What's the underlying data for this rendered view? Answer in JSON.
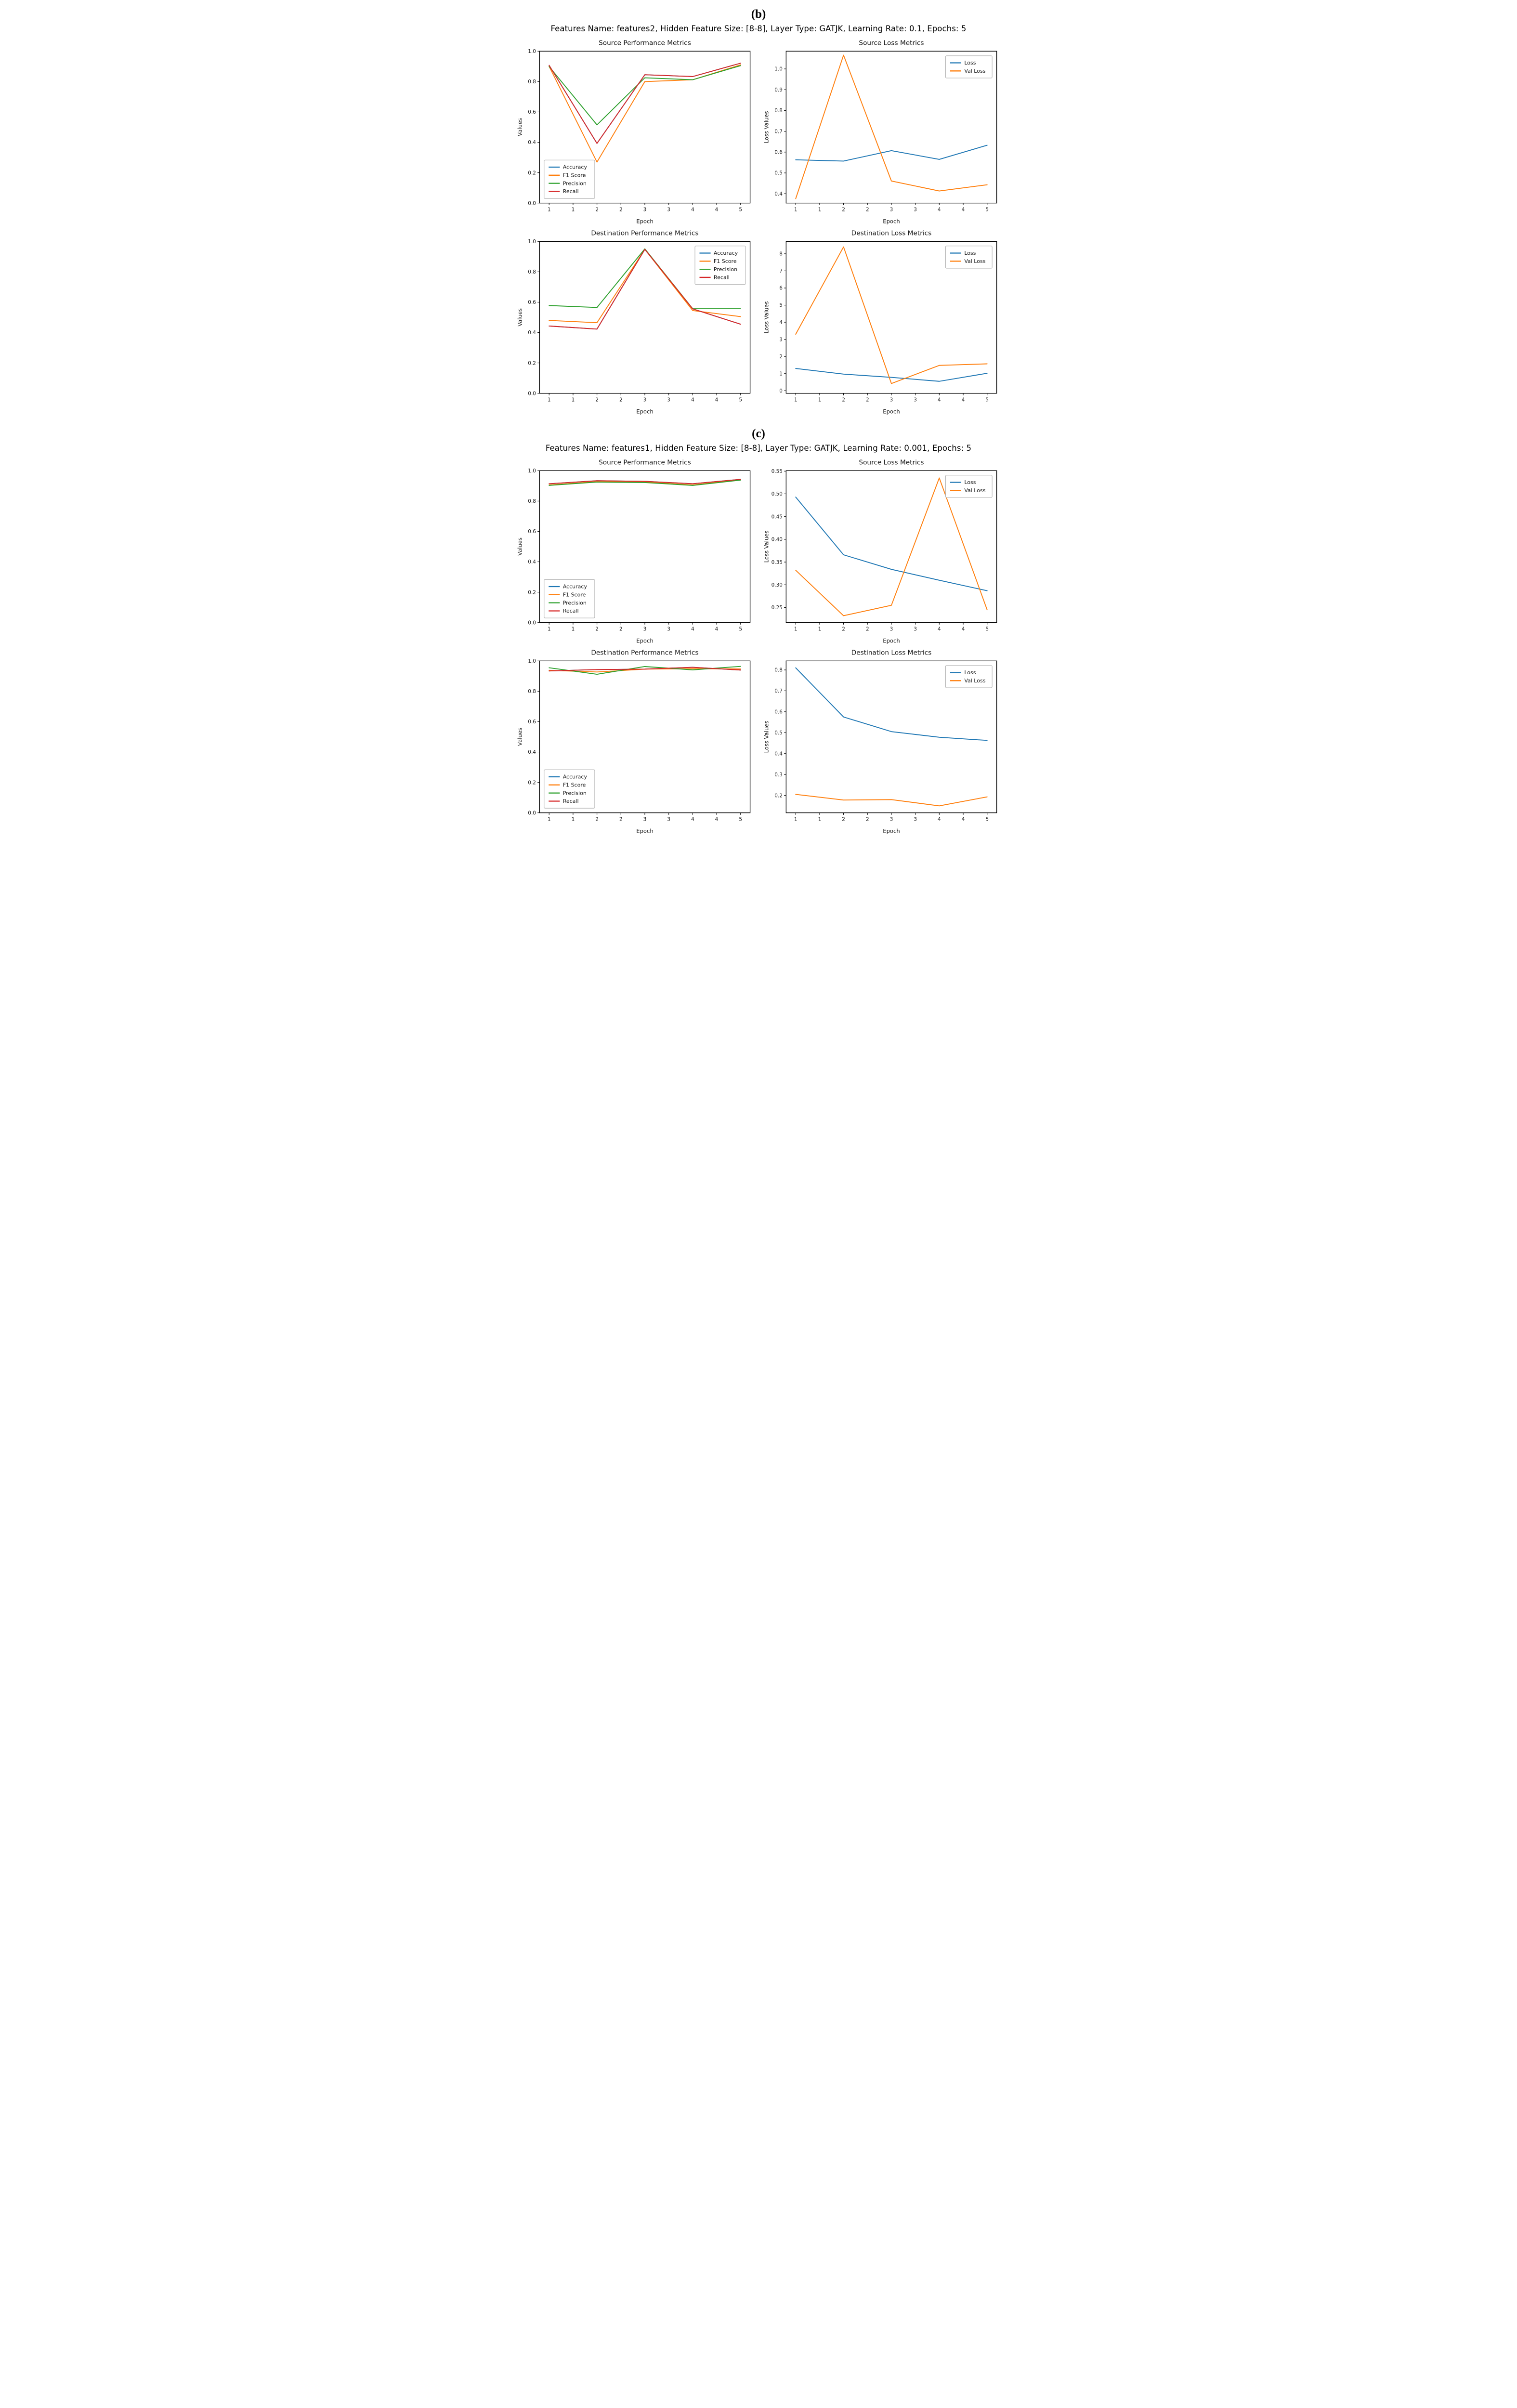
{
  "sections": {
    "b": {
      "label": "(b)",
      "caption": "Features Name: features2, Hidden Feature Size: [8-8], Layer Type: GATJK, Learning Rate: 0.1, Epochs: 5"
    },
    "c": {
      "label": "(c)",
      "caption": "Features Name: features1, Hidden Feature Size: [8-8], Layer Type: GATJK, Learning Rate: 0.001, Epochs: 5"
    }
  },
  "colors": {
    "accuracy": "#1f77b4",
    "f1_score": "#ff7f0e",
    "precision": "#2ca02c",
    "recall": "#d62728",
    "loss": "#1f77b4",
    "val_loss": "#ff7f0e",
    "axis": "#000000",
    "legend_border": "#b0b0b0"
  },
  "chart_data": [
    {
      "id": "b-source-performance",
      "type": "line",
      "title": "Source Performance Metrics",
      "xlabel": "Epoch",
      "ylabel": "Values",
      "x": [
        1,
        2,
        3,
        4,
        5
      ],
      "xlim": [
        0.8,
        5.2
      ],
      "xticks": [
        1,
        1.5,
        2,
        2.5,
        3,
        3.5,
        4,
        4.5,
        5
      ],
      "xtick_labels": [
        "1",
        "1",
        "2",
        "2",
        "3",
        "3",
        "4",
        "4",
        "5"
      ],
      "ylim": [
        0.0,
        1.0
      ],
      "yticks": [
        0.0,
        0.2,
        0.4,
        0.6,
        0.8,
        1.0
      ],
      "ytick_labels": [
        "0.0",
        "0.2",
        "0.4",
        "0.6",
        "0.8",
        "1.0"
      ],
      "grid": false,
      "legend_position": "lower-left",
      "series": [
        {
          "name": "Accuracy",
          "color": "#1f77b4",
          "values": [
            0.907,
            0.393,
            0.845,
            0.833,
            0.921
          ]
        },
        {
          "name": "F1 Score",
          "color": "#ff7f0e",
          "values": [
            0.9,
            0.27,
            0.8,
            0.812,
            0.91
          ]
        },
        {
          "name": "Precision",
          "color": "#2ca02c",
          "values": [
            0.899,
            0.515,
            0.825,
            0.812,
            0.905
          ]
        },
        {
          "name": "Recall",
          "color": "#d62728",
          "values": [
            0.907,
            0.393,
            0.845,
            0.833,
            0.921
          ]
        }
      ]
    },
    {
      "id": "b-source-loss",
      "type": "line",
      "title": "Source Loss Metrics",
      "xlabel": "Epoch",
      "ylabel": "Loss Values",
      "x": [
        1,
        2,
        3,
        4,
        5
      ],
      "xlim": [
        0.8,
        5.2
      ],
      "xticks": [
        1,
        1.5,
        2,
        2.5,
        3,
        3.5,
        4,
        4.5,
        5
      ],
      "xtick_labels": [
        "1",
        "1",
        "2",
        "2",
        "3",
        "3",
        "4",
        "4",
        "5"
      ],
      "ylim": [
        0.355,
        1.085
      ],
      "yticks": [
        0.4,
        0.5,
        0.6,
        0.7,
        0.8,
        0.9,
        1.0
      ],
      "ytick_labels": [
        "0.4",
        "0.5",
        "0.6",
        "0.7",
        "0.8",
        "0.9",
        "1.0"
      ],
      "grid": false,
      "legend_position": "upper-right",
      "series": [
        {
          "name": "Loss",
          "color": "#1f77b4",
          "values": [
            0.563,
            0.557,
            0.607,
            0.565,
            0.633
          ]
        },
        {
          "name": "Val Loss",
          "color": "#ff7f0e",
          "values": [
            0.376,
            1.066,
            0.461,
            0.413,
            0.443
          ]
        }
      ]
    },
    {
      "id": "b-destination-performance",
      "type": "line",
      "title": "Destination Performance Metrics",
      "xlabel": "Epoch",
      "ylabel": "Values",
      "x": [
        1,
        2,
        3,
        4,
        5
      ],
      "xlim": [
        0.8,
        5.2
      ],
      "xticks": [
        1,
        1.5,
        2,
        2.5,
        3,
        3.5,
        4,
        4.5,
        5
      ],
      "xtick_labels": [
        "1",
        "1",
        "2",
        "2",
        "3",
        "3",
        "4",
        "4",
        "5"
      ],
      "ylim": [
        0.0,
        1.0
      ],
      "yticks": [
        0.0,
        0.2,
        0.4,
        0.6,
        0.8,
        1.0
      ],
      "ytick_labels": [
        "0.0",
        "0.2",
        "0.4",
        "0.6",
        "0.8",
        "1.0"
      ],
      "grid": false,
      "legend_position": "upper-right",
      "series": [
        {
          "name": "Accuracy",
          "color": "#1f77b4",
          "values": [
            0.443,
            0.423,
            0.948,
            0.556,
            0.455
          ]
        },
        {
          "name": "F1 Score",
          "color": "#ff7f0e",
          "values": [
            0.48,
            0.465,
            0.948,
            0.545,
            0.505
          ]
        },
        {
          "name": "Precision",
          "color": "#2ca02c",
          "values": [
            0.578,
            0.565,
            0.951,
            0.557,
            0.557
          ]
        },
        {
          "name": "Recall",
          "color": "#d62728",
          "values": [
            0.443,
            0.423,
            0.948,
            0.556,
            0.455
          ]
        }
      ]
    },
    {
      "id": "b-destination-loss",
      "type": "line",
      "title": "Destination Loss Metrics",
      "xlabel": "Epoch",
      "ylabel": "Loss Values",
      "x": [
        1,
        2,
        3,
        4,
        5
      ],
      "xlim": [
        0.8,
        5.2
      ],
      "xticks": [
        1,
        1.5,
        2,
        2.5,
        3,
        3.5,
        4,
        4.5,
        5
      ],
      "xtick_labels": [
        "1",
        "1",
        "2",
        "2",
        "3",
        "3",
        "4",
        "4",
        "5"
      ],
      "ylim": [
        -0.15,
        8.72
      ],
      "yticks": [
        0,
        1,
        2,
        3,
        4,
        5,
        6,
        7,
        8
      ],
      "ytick_labels": [
        "0",
        "1",
        "2",
        "3",
        "4",
        "5",
        "6",
        "7",
        "8"
      ],
      "grid": false,
      "legend_position": "upper-right",
      "series": [
        {
          "name": "Loss",
          "color": "#1f77b4",
          "values": [
            1.3,
            0.97,
            0.78,
            0.55,
            1.02
          ]
        },
        {
          "name": "Val Loss",
          "color": "#ff7f0e",
          "values": [
            3.3,
            8.4,
            0.42,
            1.48,
            1.57
          ]
        }
      ]
    },
    {
      "id": "c-source-performance",
      "type": "line",
      "title": "Source Performance Metrics",
      "xlabel": "Epoch",
      "ylabel": "Values",
      "x": [
        1,
        2,
        3,
        4,
        5
      ],
      "xlim": [
        0.8,
        5.2
      ],
      "xticks": [
        1,
        1.5,
        2,
        2.5,
        3,
        3.5,
        4,
        4.5,
        5
      ],
      "xtick_labels": [
        "1",
        "1",
        "2",
        "2",
        "3",
        "3",
        "4",
        "4",
        "5"
      ],
      "ylim": [
        0.0,
        1.0
      ],
      "yticks": [
        0.0,
        0.2,
        0.4,
        0.6,
        0.8,
        1.0
      ],
      "ytick_labels": [
        "0.0",
        "0.2",
        "0.4",
        "0.6",
        "0.8",
        "1.0"
      ],
      "grid": false,
      "legend_position": "lower-left",
      "series": [
        {
          "name": "Accuracy",
          "color": "#1f77b4",
          "values": [
            0.914,
            0.934,
            0.93,
            0.914,
            0.943
          ]
        },
        {
          "name": "F1 Score",
          "color": "#ff7f0e",
          "values": [
            0.906,
            0.928,
            0.925,
            0.906,
            0.94
          ]
        },
        {
          "name": "Precision",
          "color": "#2ca02c",
          "values": [
            0.903,
            0.925,
            0.922,
            0.903,
            0.938
          ]
        },
        {
          "name": "Recall",
          "color": "#d62728",
          "values": [
            0.914,
            0.934,
            0.93,
            0.914,
            0.943
          ]
        }
      ]
    },
    {
      "id": "c-source-loss",
      "type": "line",
      "title": "Source Loss Metrics",
      "xlabel": "Epoch",
      "ylabel": "Loss Values",
      "x": [
        1,
        2,
        3,
        4,
        5
      ],
      "xlim": [
        0.8,
        5.2
      ],
      "xticks": [
        1,
        1.5,
        2,
        2.5,
        3,
        3.5,
        4,
        4.5,
        5
      ],
      "xtick_labels": [
        "1",
        "1",
        "2",
        "2",
        "3",
        "3",
        "4",
        "4",
        "5"
      ],
      "ylim": [
        0.217,
        0.551
      ],
      "yticks": [
        0.25,
        0.3,
        0.35,
        0.4,
        0.45,
        0.5,
        0.55
      ],
      "ytick_labels": [
        "0.25",
        "0.30",
        "0.35",
        "0.40",
        "0.45",
        "0.50",
        "0.55"
      ],
      "grid": false,
      "legend_position": "upper-right",
      "series": [
        {
          "name": "Loss",
          "color": "#1f77b4",
          "values": [
            0.493,
            0.366,
            0.334,
            0.31,
            0.287
          ]
        },
        {
          "name": "Val Loss",
          "color": "#ff7f0e",
          "values": [
            0.332,
            0.232,
            0.255,
            0.535,
            0.245
          ]
        }
      ]
    },
    {
      "id": "c-destination-performance",
      "type": "line",
      "title": "Destination Performance Metrics",
      "xlabel": "Epoch",
      "ylabel": "Values",
      "x": [
        1,
        2,
        3,
        4,
        5
      ],
      "xlim": [
        0.8,
        5.2
      ],
      "xticks": [
        1,
        1.5,
        2,
        2.5,
        3,
        3.5,
        4,
        4.5,
        5
      ],
      "xtick_labels": [
        "1",
        "1",
        "2",
        "2",
        "3",
        "3",
        "4",
        "4",
        "5"
      ],
      "ylim": [
        0.0,
        1.0
      ],
      "yticks": [
        0.0,
        0.2,
        0.4,
        0.6,
        0.8,
        1.0
      ],
      "ytick_labels": [
        "0.0",
        "0.2",
        "0.4",
        "0.6",
        "0.8",
        "1.0"
      ],
      "grid": false,
      "legend_position": "lower-left",
      "series": [
        {
          "name": "Accuracy",
          "color": "#1f77b4",
          "values": [
            0.934,
            0.943,
            0.946,
            0.958,
            0.94
          ]
        },
        {
          "name": "F1 Score",
          "color": "#ff7f0e",
          "values": [
            0.938,
            0.927,
            0.946,
            0.949,
            0.947
          ]
        },
        {
          "name": "Precision",
          "color": "#2ca02c",
          "values": [
            0.955,
            0.912,
            0.963,
            0.941,
            0.964
          ]
        },
        {
          "name": "Recall",
          "color": "#d62728",
          "values": [
            0.934,
            0.943,
            0.946,
            0.958,
            0.94
          ]
        }
      ]
    },
    {
      "id": "c-destination-loss",
      "type": "line",
      "title": "Destination Loss Metrics",
      "xlabel": "Epoch",
      "ylabel": "Loss Values",
      "x": [
        1,
        2,
        3,
        4,
        5
      ],
      "xlim": [
        0.8,
        5.2
      ],
      "xticks": [
        1,
        1.5,
        2,
        2.5,
        3,
        3.5,
        4,
        4.5,
        5
      ],
      "xtick_labels": [
        "1",
        "1",
        "2",
        "2",
        "3",
        "3",
        "4",
        "4",
        "5"
      ],
      "ylim": [
        0.117,
        0.843
      ],
      "yticks": [
        0.2,
        0.3,
        0.4,
        0.5,
        0.6,
        0.7,
        0.8
      ],
      "ytick_labels": [
        "0.2",
        "0.3",
        "0.4",
        "0.5",
        "0.6",
        "0.7",
        "0.8"
      ],
      "grid": false,
      "legend_position": "upper-right",
      "series": [
        {
          "name": "Loss",
          "color": "#1f77b4",
          "values": [
            0.81,
            0.575,
            0.505,
            0.478,
            0.463
          ]
        },
        {
          "name": "Val Loss",
          "color": "#ff7f0e",
          "values": [
            0.205,
            0.178,
            0.18,
            0.15,
            0.193
          ]
        }
      ]
    }
  ]
}
